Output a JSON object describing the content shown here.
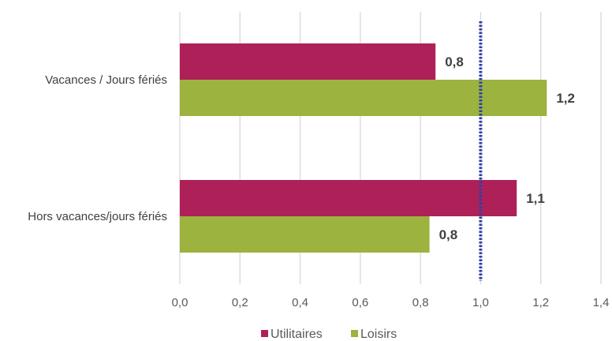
{
  "chart_data": {
    "type": "bar",
    "orientation": "horizontal",
    "categories": [
      "Vacances / Jours fériés",
      "Hors vacances/jours fériés"
    ],
    "series": [
      {
        "name": "Utilitaires",
        "values": [
          0.85,
          1.12
        ],
        "labels": [
          "0,8",
          "1,1"
        ],
        "color": "#ae2158"
      },
      {
        "name": "Loisirs",
        "values": [
          1.22,
          0.83
        ],
        "labels": [
          "1,2",
          "0,8"
        ],
        "color": "#9cb33f"
      }
    ],
    "xlim": [
      0,
      1.4
    ],
    "xticks": [
      {
        "value": 0,
        "label": "0,0"
      },
      {
        "value": 0.2,
        "label": "0,2"
      },
      {
        "value": 0.4,
        "label": "0,4"
      },
      {
        "value": 0.6,
        "label": "0,6"
      },
      {
        "value": 0.8,
        "label": "0,8"
      },
      {
        "value": 1.0,
        "label": "1,0"
      },
      {
        "value": 1.2,
        "label": "1,2"
      },
      {
        "value": 1.4,
        "label": "1,4"
      }
    ],
    "reference_line": {
      "value": 1.0,
      "style": "dotted",
      "color": "#2e3fa8"
    },
    "grid": true,
    "legend": "bottom",
    "title": "",
    "xlabel": "",
    "ylabel": ""
  }
}
